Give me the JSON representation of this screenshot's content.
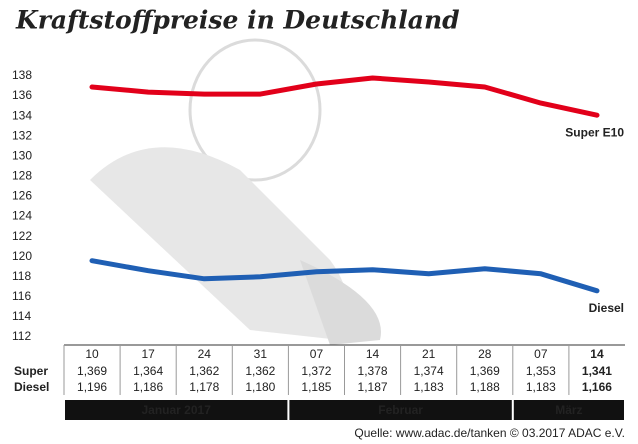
{
  "chart_data": {
    "type": "line",
    "title": "Kraftstoffpreise in Deutschland",
    "categories": [
      "10",
      "17",
      "24",
      "31",
      "07",
      "14",
      "21",
      "28",
      "07",
      "14"
    ],
    "series": [
      {
        "name": "Super E10",
        "row_label": "Super",
        "color": "#e2001a",
        "values": [
          136.9,
          136.4,
          136.2,
          136.2,
          137.2,
          137.8,
          137.4,
          136.9,
          135.3,
          134.1
        ],
        "value_labels": [
          "1,369",
          "1,364",
          "1,362",
          "1,362",
          "1,372",
          "1,378",
          "1,374",
          "1,369",
          "1,353",
          "1,341"
        ]
      },
      {
        "name": "Diesel",
        "row_label": "Diesel",
        "color": "#1f5fb4",
        "values": [
          119.6,
          118.6,
          117.8,
          118.0,
          118.5,
          118.7,
          118.3,
          118.8,
          118.3,
          116.6
        ],
        "value_labels": [
          "1,196",
          "1,186",
          "1,178",
          "1,180",
          "1,185",
          "1,187",
          "1,183",
          "1,188",
          "1,183",
          "1,166"
        ]
      }
    ],
    "months": [
      "Januar 2017",
      "Februar",
      "März"
    ],
    "source": "Quelle: www.adac.de/tanken  © 03.2017  ADAC e.V.",
    "ylim": [
      112,
      138
    ],
    "yticks": [
      112,
      114,
      116,
      118,
      120,
      122,
      124,
      126,
      128,
      130,
      132,
      134,
      136,
      138
    ],
    "grid": false
  }
}
